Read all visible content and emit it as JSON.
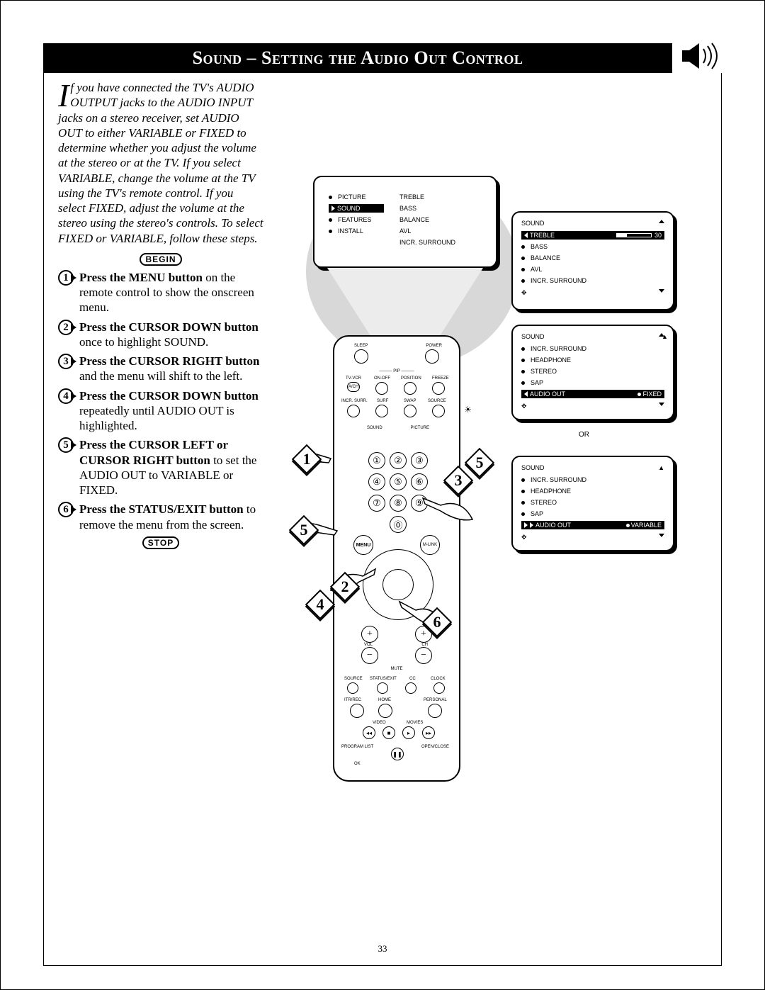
{
  "title": "Sound – Setting the Audio Out Control",
  "page_number": "33",
  "intro": "f you have connected the TV's AUDIO OUTPUT jacks to the AUDIO INPUT jacks on a stereo receiver, set AUDIO OUT to either VARIABLE or FIXED to determine whether you adjust the volume at the stereo or at the TV.  If you select VARIABLE, change the volume at the TV using the TV's remote control.  If you select FIXED, adjust the volume at the stereo using the stereo's controls. To select FIXED or VARIABLE, follow these steps.",
  "begin": "BEGIN",
  "stop": "STOP",
  "steps": [
    {
      "n": "1",
      "bold": "Press the MENU button",
      "rest": " on the remote control to show the onscreen menu."
    },
    {
      "n": "2",
      "bold": "Press the CURSOR DOWN button",
      "rest": " once to highlight SOUND."
    },
    {
      "n": "3",
      "bold": "Press the CURSOR RIGHT button",
      "rest": " and the menu will shift to the left."
    },
    {
      "n": "4",
      "bold": "Press the CURSOR DOWN button",
      "rest": " repeatedly until AUDIO OUT is highlighted."
    },
    {
      "n": "5",
      "bold": "Press the CURSOR LEFT or CURSOR RIGHT button",
      "rest": " to set the AUDIO OUT to VARIABLE or FIXED."
    },
    {
      "n": "6",
      "bold": "Press the STATUS/EXIT button",
      "rest": " to remove the menu from the screen."
    }
  ],
  "osd_main": {
    "left": [
      "PICTURE",
      "SOUND",
      "FEATURES",
      "INSTALL"
    ],
    "left_highlight_index": 1,
    "right": [
      "TREBLE",
      "BASS",
      "BALANCE",
      "AVL",
      "INCR. SURROUND"
    ]
  },
  "osd_sound1": {
    "title": "SOUND",
    "items": [
      "TREBLE",
      "BASS",
      "BALANCE",
      "AVL",
      "INCR. SURROUND"
    ],
    "highlight_index": 0,
    "highlight_value": "30",
    "highlight_arrow": "left"
  },
  "osd_sound2": {
    "title": "SOUND",
    "items": [
      "INCR. SURROUND",
      "HEADPHONE",
      "STEREO",
      "SAP",
      "AUDIO OUT"
    ],
    "highlight_index": 4,
    "highlight_value": "FIXED",
    "highlight_arrow": "left",
    "scroll_up": true
  },
  "or": "OR",
  "osd_sound3": {
    "title": "SOUND",
    "items": [
      "INCR. SURROUND",
      "HEADPHONE",
      "STEREO",
      "SAP",
      "AUDIO OUT"
    ],
    "highlight_index": 4,
    "highlight_value": "VARIABLE",
    "highlight_arrow": "right",
    "scroll_up": true
  },
  "remote": {
    "top_labels": {
      "sleep": "SLEEP",
      "power": "POWER",
      "pip": "PIP",
      "tvvcr": "TV-VCR",
      "onoff": "ON-OFF",
      "position": "POSITION",
      "freeze": "FREEZE",
      "ach": "A/CH",
      "incrsurr": "INCR. SURR.",
      "surf": "SURF",
      "swap": "SWAP",
      "source": "SOURCE"
    },
    "sound": "SOUND",
    "picture": "PICTURE",
    "menu": "MENU",
    "mlink": "M-LINK",
    "vol": "VOL",
    "ch": "CH",
    "mute": "MUTE",
    "bottom": {
      "source": "SOURCE",
      "status": "STATUS/EXIT",
      "cc": "CC",
      "clock": "CLOCK",
      "itr": "ITR/REC",
      "home": "HOME",
      "personal": "PERSONAL",
      "video": "VIDEO",
      "movies": "MOVIES",
      "program": "PROGRAM LIST",
      "open": "OPEN/CLOSE",
      "ok": "OK"
    }
  },
  "diamonds": {
    "d1": "1",
    "d2": "2",
    "d3": "3",
    "d4": "4",
    "d5": "5",
    "d5b": "5",
    "d6": "6"
  }
}
